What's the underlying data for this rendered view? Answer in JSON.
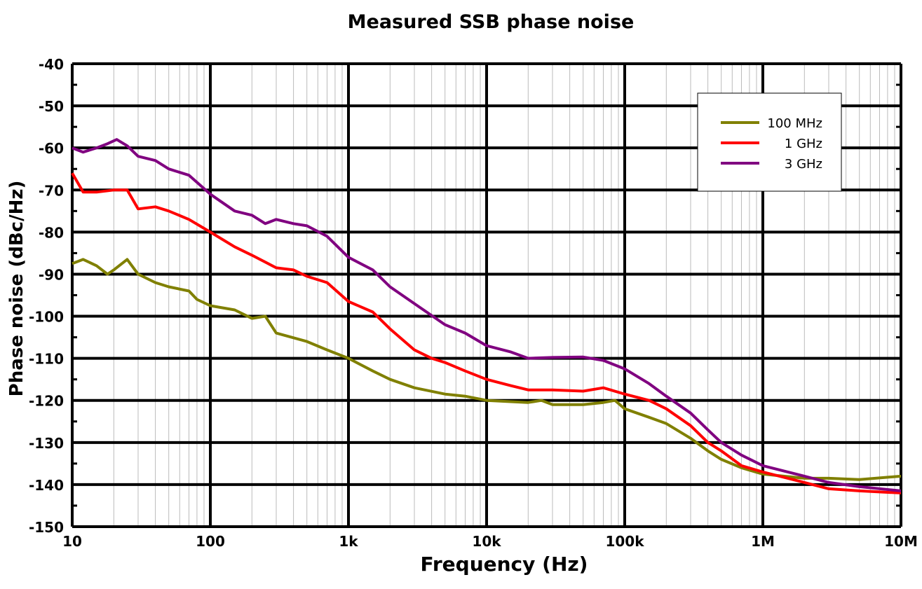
{
  "chart_data": {
    "type": "line",
    "title": "Measured SSB phase noise",
    "xlabel": "Frequency (Hz)",
    "ylabel": "Phase noise (dBc/Hz)",
    "xscale": "log",
    "xlim": [
      10,
      10000000
    ],
    "ylim": [
      -150,
      -40
    ],
    "grid": true,
    "legend_position": "top-right",
    "x_ticks": [
      10,
      100,
      1000,
      10000,
      100000,
      1000000,
      10000000
    ],
    "x_tick_labels": [
      "10",
      "100",
      "1k",
      "10k",
      "100k",
      "1M",
      "10M"
    ],
    "y_ticks": [
      -40,
      -50,
      -60,
      -70,
      -80,
      -90,
      -100,
      -110,
      -120,
      -130,
      -140,
      -150
    ],
    "y_tick_labels": [
      "-40",
      "-50",
      "-60",
      "-70",
      "-80",
      "-90",
      "-100",
      "-110",
      "-120",
      "-130",
      "-140",
      "-150"
    ],
    "series": [
      {
        "name": "100 MHz",
        "color": "#808000",
        "x": [
          10,
          12,
          15,
          18,
          20,
          25,
          30,
          40,
          50,
          70,
          80,
          100,
          150,
          200,
          250,
          300,
          500,
          700,
          1000,
          1500,
          2000,
          3000,
          5000,
          7000,
          10000,
          20000,
          25000,
          30000,
          50000,
          70000,
          85000,
          100000,
          150000,
          200000,
          300000,
          400000,
          500000,
          700000,
          1000000,
          2000000,
          3000000,
          5000000,
          10000000
        ],
        "y": [
          -87.5,
          -86.5,
          -88,
          -90,
          -89,
          -86.5,
          -90,
          -92,
          -93,
          -94,
          -96,
          -97.5,
          -98.5,
          -100.5,
          -100,
          -104,
          -106,
          -108,
          -110,
          -113,
          -115,
          -117,
          -118.5,
          -119,
          -120,
          -120.5,
          -120,
          -121,
          -121,
          -120.5,
          -120,
          -122,
          -124,
          -125.5,
          -129,
          -132,
          -134,
          -136,
          -137.5,
          -138.5,
          -138.5,
          -138.8,
          -138
        ]
      },
      {
        "name": "1 GHz",
        "color": "#ff0000",
        "x": [
          10,
          12,
          15,
          20,
          25,
          30,
          40,
          50,
          70,
          100,
          150,
          200,
          300,
          400,
          500,
          700,
          1000,
          1500,
          2000,
          3000,
          4000,
          5000,
          7000,
          10000,
          15000,
          20000,
          30000,
          50000,
          70000,
          100000,
          150000,
          200000,
          300000,
          400000,
          500000,
          700000,
          1000000,
          2000000,
          3000000,
          5000000,
          10000000
        ],
        "y": [
          -66,
          -70.5,
          -70.5,
          -70,
          -70,
          -74.5,
          -74,
          -75,
          -77,
          -80,
          -83.5,
          -85.5,
          -88.5,
          -89,
          -90.5,
          -92,
          -96.5,
          -99,
          -103,
          -108,
          -110,
          -111,
          -113,
          -115,
          -116.5,
          -117.5,
          -117.5,
          -117.8,
          -117,
          -118.5,
          -120,
          -122,
          -126,
          -130,
          -132,
          -135.5,
          -137,
          -139.5,
          -141,
          -141.5,
          -142
        ]
      },
      {
        "name": "3 GHz",
        "color": "#800080",
        "x": [
          10,
          12,
          15,
          18,
          21,
          25,
          30,
          40,
          50,
          70,
          100,
          150,
          200,
          250,
          300,
          400,
          500,
          700,
          1000,
          1500,
          2000,
          3000,
          5000,
          7000,
          10000,
          15000,
          20000,
          30000,
          50000,
          70000,
          100000,
          150000,
          200000,
          300000,
          400000,
          500000,
          700000,
          1000000,
          2000000,
          3000000,
          5000000,
          10000000
        ],
        "y": [
          -60,
          -61,
          -60,
          -59,
          -58,
          -59.5,
          -62,
          -63,
          -65,
          -66.5,
          -71,
          -75,
          -76,
          -78,
          -77,
          -78,
          -78.5,
          -81,
          -86,
          -89,
          -93,
          -97,
          -102,
          -104,
          -107,
          -108.5,
          -110,
          -109.8,
          -109.7,
          -110.5,
          -112.5,
          -116,
          -119,
          -123,
          -127,
          -130,
          -133,
          -135.5,
          -138,
          -139.5,
          -140.5,
          -141.5
        ]
      }
    ]
  }
}
